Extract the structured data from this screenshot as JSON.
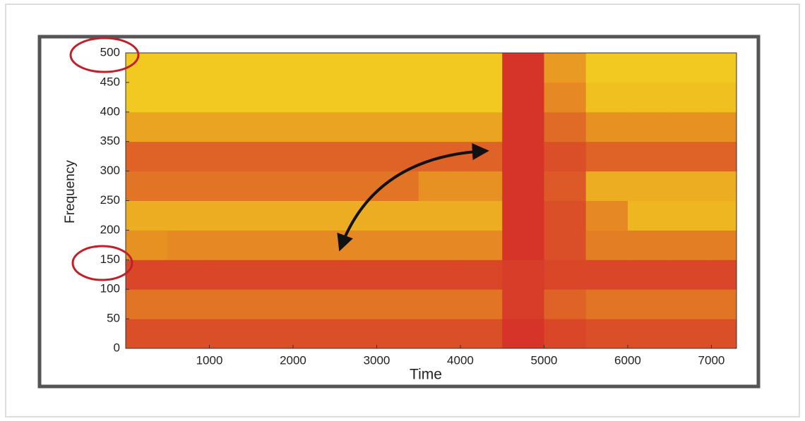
{
  "chart_data": {
    "type": "heatmap",
    "xlabel": "Time",
    "ylabel": "Frequency",
    "xlim": [
      0,
      7300
    ],
    "ylim": [
      0,
      500
    ],
    "xticks": [
      1000,
      2000,
      3000,
      4000,
      5000,
      6000,
      7000
    ],
    "yticks": [
      0,
      50,
      100,
      150,
      200,
      250,
      300,
      350,
      400,
      450,
      500
    ],
    "xbins": [
      0,
      500,
      1000,
      1500,
      2000,
      2500,
      3000,
      3500,
      4000,
      4500,
      5000,
      5500,
      6000,
      6500,
      7000,
      7300
    ],
    "ybins": [
      0,
      50,
      100,
      150,
      200,
      250,
      300,
      350,
      400,
      450,
      500
    ],
    "colors": [
      "#f7e51e",
      "#d42a2a"
    ],
    "z": [
      [
        0.8,
        0.8,
        0.8,
        0.8,
        0.8,
        0.8,
        0.8,
        0.8,
        0.8,
        0.95,
        0.85,
        0.8,
        0.8,
        0.8,
        0.8
      ],
      [
        0.6,
        0.6,
        0.6,
        0.6,
        0.6,
        0.6,
        0.6,
        0.6,
        0.6,
        0.9,
        0.7,
        0.6,
        0.6,
        0.6,
        0.6
      ],
      [
        0.85,
        0.85,
        0.85,
        0.85,
        0.85,
        0.85,
        0.85,
        0.85,
        0.85,
        0.9,
        0.85,
        0.85,
        0.85,
        0.85,
        0.85
      ],
      [
        0.45,
        0.5,
        0.5,
        0.5,
        0.5,
        0.5,
        0.5,
        0.5,
        0.5,
        0.95,
        0.8,
        0.55,
        0.55,
        0.55,
        0.55
      ],
      [
        0.3,
        0.3,
        0.3,
        0.3,
        0.3,
        0.3,
        0.3,
        0.3,
        0.3,
        0.95,
        0.8,
        0.5,
        0.25,
        0.25,
        0.25
      ],
      [
        0.6,
        0.6,
        0.6,
        0.6,
        0.6,
        0.6,
        0.6,
        0.45,
        0.45,
        0.95,
        0.75,
        0.3,
        0.3,
        0.3,
        0.3
      ],
      [
        0.7,
        0.7,
        0.7,
        0.7,
        0.7,
        0.7,
        0.7,
        0.7,
        0.7,
        0.95,
        0.8,
        0.7,
        0.7,
        0.7,
        0.7
      ],
      [
        0.35,
        0.35,
        0.35,
        0.35,
        0.35,
        0.35,
        0.35,
        0.35,
        0.35,
        0.95,
        0.65,
        0.45,
        0.45,
        0.45,
        0.45
      ],
      [
        0.15,
        0.15,
        0.15,
        0.15,
        0.15,
        0.15,
        0.15,
        0.15,
        0.15,
        0.95,
        0.5,
        0.2,
        0.2,
        0.2,
        0.2
      ],
      [
        0.15,
        0.15,
        0.15,
        0.15,
        0.15,
        0.15,
        0.15,
        0.15,
        0.15,
        0.95,
        0.4,
        0.15,
        0.15,
        0.15,
        0.15
      ]
    ]
  }
}
